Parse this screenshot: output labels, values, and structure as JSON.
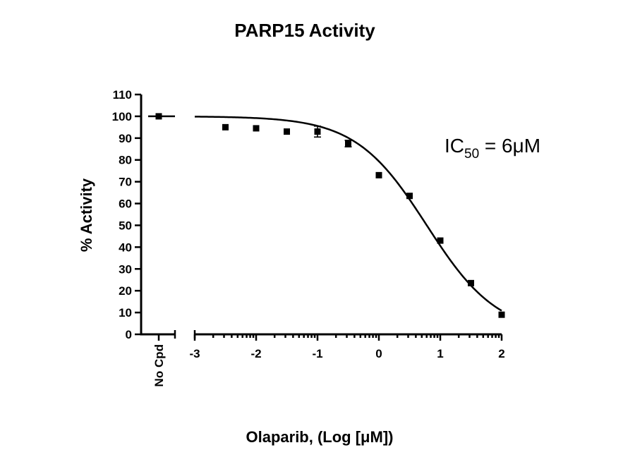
{
  "chart_data": {
    "type": "scatter",
    "title": "PARP15 Activity",
    "xlabel": "Olaparib, (Log [μM])",
    "ylabel": "% Activity",
    "ylim": [
      0,
      110
    ],
    "xlim": [
      -3,
      2
    ],
    "y_ticks": [
      0,
      10,
      20,
      30,
      40,
      50,
      60,
      70,
      80,
      90,
      100,
      110
    ],
    "x_ticks": [
      -3,
      -2,
      -1,
      0,
      1,
      2
    ],
    "control": {
      "label": "No Cpd",
      "value": 100
    },
    "series": [
      {
        "x": [
          -2.5,
          -2.0,
          -1.5,
          -1.0,
          -0.5,
          0.0,
          0.5,
          1.0,
          1.5,
          2.0
        ],
        "y": [
          95,
          94.5,
          93,
          93,
          87.5,
          73,
          63.5,
          43,
          23.5,
          9
        ],
        "error": [
          0,
          0,
          0,
          2.5,
          1.5,
          0,
          0,
          0,
          0,
          0
        ]
      }
    ],
    "fit": {
      "model": "sigmoidal dose-response",
      "top": 100,
      "bottom": 0,
      "log_ic50": 0.78,
      "hill": 0.75
    },
    "annotation": {
      "text_main": "IC",
      "text_sub": "50",
      "text_rest": " = 6μM"
    }
  }
}
